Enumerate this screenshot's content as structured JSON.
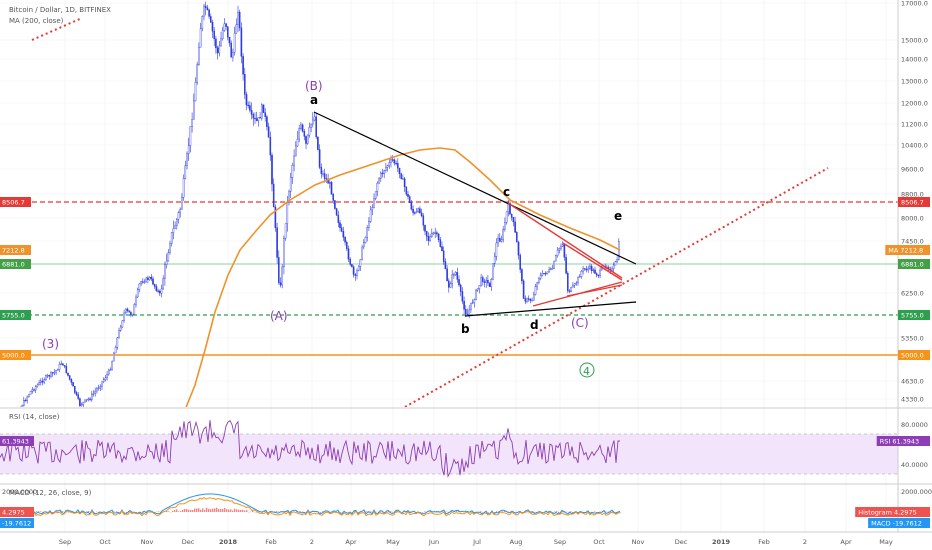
{
  "header": {
    "symbol_title": "Bitcoin / Dollar, 1D, BITFINEX",
    "ma_label": "MA (200, close)",
    "rsi_label": "RSI (14, close)",
    "macd_label": "MACD (12, 26, close, 9)"
  },
  "colors": {
    "candle": "#2d3adf",
    "ma": "#f0922b",
    "rsi": "#8d3db5",
    "rsi_band": "#f2e5fb",
    "macd": "#2196f3",
    "signal": "#f7931a",
    "hist": "#ef5350",
    "red_dash": "#e53935",
    "green_dash": "#2e9e4f",
    "orange_line": "#f7931a",
    "green_line": "#8fd19e"
  },
  "price_axis": [
    "17000.0",
    "15000.0",
    "14000.0",
    "13000.0",
    "12000.0",
    "11200.0",
    "10400.0",
    "9600.0",
    "8800.0",
    "8000.0",
    "7450.0",
    "6250.0",
    "5350.0",
    "4630.0",
    "4330.0"
  ],
  "rsi_axis": [
    "80.0000",
    "40.0000"
  ],
  "macd_axis": [
    "2000.0000"
  ],
  "price_tags": [
    {
      "text": "8506.7",
      "color": "#e53935"
    },
    {
      "text": "7212.8",
      "color": "#f0922b"
    },
    {
      "text": "6881.0",
      "color": "#43a047"
    },
    {
      "text": "5755.0",
      "color": "#2e9e4f"
    },
    {
      "text": "5000.0",
      "color": "#f7931a"
    }
  ],
  "right_tags": [
    {
      "text": "8506.7",
      "color": "#e53935"
    },
    {
      "text": "MA 7212.8",
      "color": "#f0922b"
    },
    {
      "text": "6881.0",
      "color": "#43a047"
    },
    {
      "text": "5755.0",
      "color": "#2e9e4f"
    },
    {
      "text": "5000.0",
      "color": "#f7931a"
    },
    {
      "text": "RSI 61.3943",
      "color": "#8d3db5"
    },
    {
      "text": "Histogram 4.2975",
      "color": "#ef5350"
    },
    {
      "text": "MACD -19.7612",
      "color": "#2196f3"
    }
  ],
  "left_sub_tags": [
    {
      "text": "61.3943",
      "color": "#8d3db5"
    },
    {
      "text": "4.2975",
      "color": "#ef5350"
    },
    {
      "text": "-19.7612",
      "color": "#2196f3"
    }
  ],
  "time_axis": [
    "Sep",
    "Oct",
    "Nov",
    "Dec",
    "2018",
    "Feb",
    "2",
    "Apr",
    "May",
    "Jun",
    "Jul",
    "Aug",
    "Sep",
    "Oct",
    "Nov",
    "Dec",
    "2019",
    "Feb",
    "2",
    "Apr",
    "May"
  ],
  "wave_labels": {
    "a": "a",
    "b": "b",
    "c": "c",
    "d": "d",
    "e": "e",
    "B": "(B)",
    "A": "(A)",
    "C": "(C)",
    "three": "(3)",
    "four": "4"
  },
  "chart_data": {
    "type": "line",
    "title": "Bitcoin / Dollar, 1D, BITFINEX",
    "series": [
      {
        "name": "MA (200, close)"
      },
      {
        "name": "RSI (14, close)"
      },
      {
        "name": "MACD (12, 26, close, 9)"
      }
    ],
    "horizontal_levels": [
      8506.7,
      6881.0,
      5755.0,
      5000.0
    ],
    "last_values": {
      "ma": 7212.8,
      "rsi": 61.3943,
      "histogram": 4.2975,
      "macd": -19.7612
    }
  }
}
